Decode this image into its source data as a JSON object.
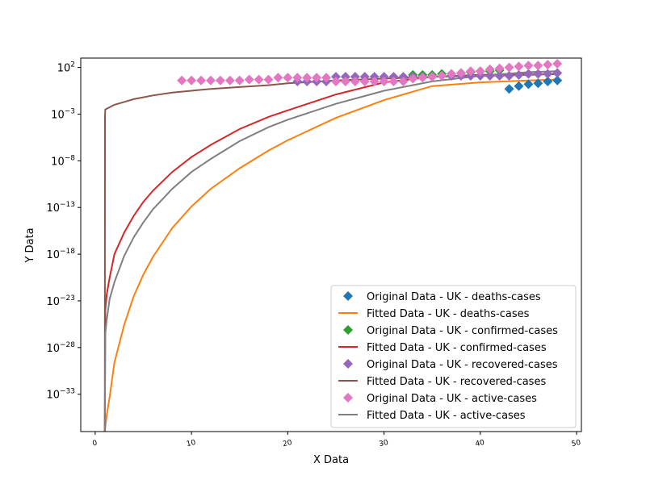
{
  "chart_data": {
    "type": "scatter",
    "title": "",
    "xlabel": "X Data",
    "ylabel": "Y Data",
    "xlim": [
      -1.5,
      50.5
    ],
    "ylim_log10": [
      -37,
      3
    ],
    "yscale": "log",
    "grid": false,
    "legend_position": "lower-right",
    "x_ticks": [
      0,
      10,
      20,
      30,
      40,
      50
    ],
    "y_ticks": [
      {
        "exp": 2,
        "label": "2"
      },
      {
        "exp": -3,
        "label": "−3"
      },
      {
        "exp": -8,
        "label": "−8"
      },
      {
        "exp": -13,
        "label": "−13"
      },
      {
        "exp": -18,
        "label": "−18"
      },
      {
        "exp": -23,
        "label": "−23"
      },
      {
        "exp": -28,
        "label": "−28"
      },
      {
        "exp": -33,
        "label": "−33"
      }
    ],
    "y_tick_base": "10",
    "series": [
      {
        "name": "Original Data - UK - deaths-cases",
        "kind": "marker",
        "color": "#1f77b4",
        "x": [
          43,
          44,
          45,
          46,
          47,
          48
        ],
        "y_log10": [
          -0.3,
          0.0,
          0.2,
          0.3,
          0.5,
          0.6
        ]
      },
      {
        "name": "Fitted Data - UK - deaths-cases",
        "kind": "line",
        "color": "#ff7f0e",
        "x": [
          1,
          1.2,
          1.5,
          2,
          3,
          4,
          5,
          6,
          8,
          10,
          12,
          15,
          18,
          20,
          25,
          30,
          35,
          40,
          45,
          48
        ],
        "y_log10": [
          -37,
          -35.2,
          -33.3,
          -29.6,
          -25.6,
          -22.5,
          -20.2,
          -18.3,
          -15.2,
          -12.9,
          -11.0,
          -8.8,
          -6.9,
          -5.8,
          -3.4,
          -1.5,
          0.0,
          0.4,
          0.6,
          0.7
        ]
      },
      {
        "name": "Original Data - UK - confirmed-cases",
        "kind": "marker",
        "color": "#2ca02c",
        "x": [
          33,
          34,
          35,
          36,
          37,
          38,
          39,
          40,
          41,
          42
        ],
        "y_log10": [
          1.2,
          1.2,
          1.2,
          1.3,
          1.3,
          1.4,
          1.5,
          1.6,
          1.6,
          1.7
        ]
      },
      {
        "name": "Fitted Data - UK - confirmed-cases",
        "kind": "line",
        "color": "#d62728",
        "x": [
          1,
          1.05,
          1.2,
          1.5,
          2,
          3,
          4,
          5,
          6,
          8,
          10,
          12,
          15,
          18,
          20,
          25,
          30,
          35,
          40,
          45,
          48
        ],
        "y_log10": [
          -37,
          -24.0,
          -22.3,
          -20.5,
          -18.0,
          -15.7,
          -13.9,
          -12.4,
          -11.2,
          -9.2,
          -7.6,
          -6.3,
          -4.6,
          -3.3,
          -2.6,
          -0.9,
          0.4,
          1.0,
          1.2,
          1.3,
          1.3
        ]
      },
      {
        "name": "Original Data - UK - recovered-cases",
        "kind": "marker",
        "color": "#9467bd",
        "x": [
          21,
          22,
          23,
          24,
          25,
          26,
          27,
          28,
          29,
          30,
          31,
          32,
          33,
          34,
          35,
          36,
          37,
          38,
          39,
          40,
          41,
          42,
          43,
          44,
          45,
          46,
          47,
          48
        ],
        "y_log10": [
          0.5,
          0.5,
          0.5,
          0.5,
          1.0,
          1.0,
          1.0,
          1.0,
          1.0,
          1.0,
          1.0,
          1.0,
          1.0,
          1.0,
          1.0,
          1.1,
          1.1,
          1.1,
          1.1,
          1.1,
          1.1,
          1.1,
          1.1,
          1.2,
          1.3,
          1.3,
          1.3,
          1.4
        ]
      },
      {
        "name": "Fitted Data - UK - recovered-cases",
        "kind": "line",
        "color": "#8c564b",
        "x": [
          1,
          1.02,
          1.05,
          2,
          3,
          4,
          5,
          6,
          8,
          10,
          12,
          15,
          18,
          20,
          25,
          30,
          35,
          40,
          45,
          48
        ],
        "y_log10": [
          -37,
          -3.2,
          -2.5,
          -2.0,
          -1.7,
          -1.4,
          -1.2,
          -1.0,
          -0.7,
          -0.5,
          -0.3,
          -0.1,
          0.1,
          0.3,
          0.6,
          0.8,
          1.0,
          1.1,
          1.2,
          1.3
        ]
      },
      {
        "name": "Original Data - UK - active-cases",
        "kind": "marker",
        "color": "#e377c2",
        "x": [
          9,
          10,
          11,
          12,
          13,
          14,
          15,
          16,
          17,
          18,
          19,
          20,
          21,
          22,
          23,
          24,
          25,
          26,
          27,
          28,
          29,
          30,
          31,
          32,
          33,
          34,
          35,
          36,
          37,
          38,
          39,
          40,
          41,
          42,
          43,
          44,
          45,
          46,
          47,
          48
        ],
        "y_log10": [
          0.6,
          0.6,
          0.6,
          0.6,
          0.6,
          0.6,
          0.6,
          0.7,
          0.7,
          0.7,
          0.9,
          0.9,
          0.9,
          0.9,
          0.9,
          0.9,
          0.5,
          0.5,
          0.5,
          0.5,
          0.5,
          0.5,
          0.5,
          0.5,
          0.8,
          0.9,
          1.0,
          1.1,
          1.3,
          1.4,
          1.6,
          1.6,
          1.8,
          1.9,
          2.0,
          2.1,
          2.2,
          2.2,
          2.3,
          2.4
        ]
      },
      {
        "name": "Fitted Data - UK - active-cases",
        "kind": "line",
        "color": "#7f7f7f",
        "x": [
          1,
          1.05,
          1.2,
          1.5,
          2,
          3,
          4,
          5,
          6,
          8,
          10,
          12,
          15,
          18,
          20,
          25,
          30,
          35,
          40,
          45,
          48
        ],
        "y_log10": [
          -37,
          -26.5,
          -25.0,
          -22.8,
          -21.0,
          -18.2,
          -16.2,
          -14.6,
          -13.2,
          -11.0,
          -9.2,
          -7.8,
          -5.9,
          -4.4,
          -3.6,
          -1.9,
          -0.5,
          0.5,
          1.1,
          1.5,
          1.6
        ]
      }
    ]
  }
}
